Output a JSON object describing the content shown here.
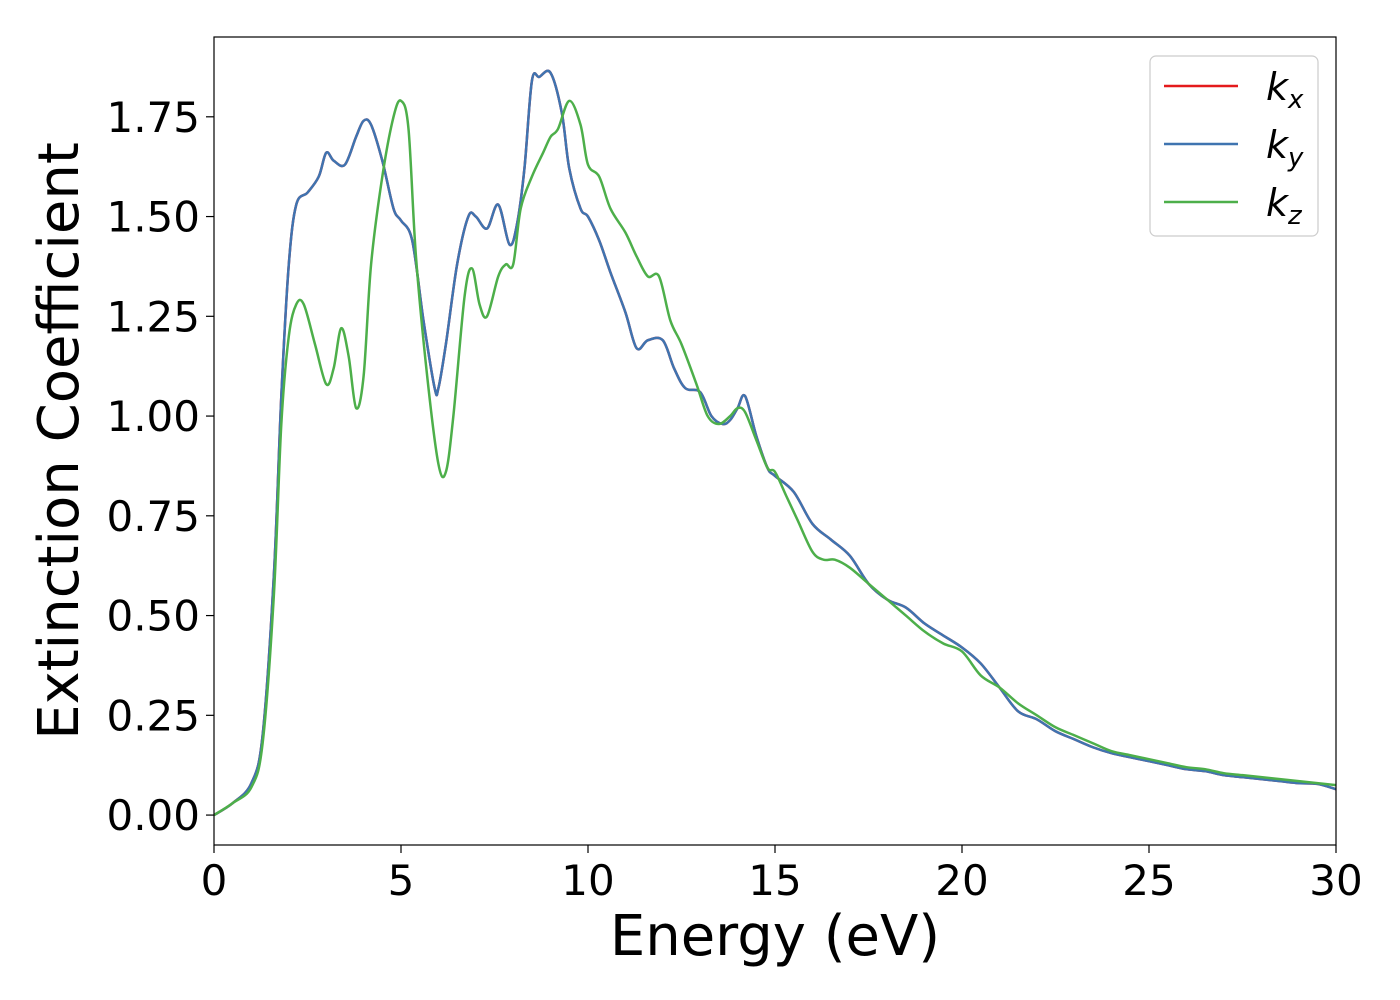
{
  "chart_data": {
    "type": "line",
    "title": "",
    "xlabel": "Energy (eV)",
    "ylabel": "Extinction Coefficient",
    "xlim": [
      0,
      30
    ],
    "ylim": [
      -0.075,
      1.95
    ],
    "xticks": [
      0,
      5,
      10,
      15,
      20,
      25,
      30
    ],
    "xtick_labels": [
      "0",
      "5",
      "10",
      "15",
      "20",
      "25",
      "30"
    ],
    "yticks": [
      0.0,
      0.25,
      0.5,
      0.75,
      1.0,
      1.25,
      1.5,
      1.75
    ],
    "ytick_labels": [
      "0.00",
      "0.25",
      "0.50",
      "0.75",
      "1.00",
      "1.25",
      "1.50",
      "1.75"
    ],
    "grid": false,
    "legend_position": "top-right",
    "series": [
      {
        "name": "k_x",
        "legend_main": "k",
        "legend_sub": "x",
        "color": "#e41a1c",
        "x": [
          0,
          0.5,
          1.0,
          1.3,
          1.6,
          1.8,
          2.0,
          2.2,
          2.5,
          2.8,
          3.0,
          3.2,
          3.5,
          3.8,
          4.0,
          4.2,
          4.5,
          4.8,
          5.0,
          5.3,
          5.6,
          5.9,
          6.0,
          6.2,
          6.5,
          6.8,
          7.0,
          7.3,
          7.6,
          7.9,
          8.1,
          8.3,
          8.5,
          8.7,
          9.0,
          9.3,
          9.5,
          9.8,
          10.0,
          10.3,
          10.6,
          11.0,
          11.3,
          11.6,
          12.0,
          12.3,
          12.6,
          13.0,
          13.3,
          13.6,
          13.8,
          14.0,
          14.2,
          14.5,
          14.8,
          15.0,
          15.5,
          16.0,
          16.5,
          17.0,
          17.5,
          18.0,
          18.5,
          19.0,
          19.5,
          20.0,
          20.5,
          21.0,
          21.5,
          22.0,
          22.5,
          23.0,
          23.5,
          24.0,
          24.5,
          25.0,
          25.5,
          26.0,
          26.5,
          27.0,
          27.5,
          28.0,
          28.5,
          29.0,
          29.5,
          30.0
        ],
        "y": [
          0.0,
          0.03,
          0.08,
          0.2,
          0.6,
          1.05,
          1.38,
          1.53,
          1.56,
          1.6,
          1.66,
          1.64,
          1.63,
          1.7,
          1.74,
          1.73,
          1.64,
          1.52,
          1.49,
          1.44,
          1.24,
          1.07,
          1.07,
          1.18,
          1.38,
          1.5,
          1.5,
          1.47,
          1.53,
          1.43,
          1.48,
          1.62,
          1.84,
          1.85,
          1.86,
          1.76,
          1.62,
          1.52,
          1.5,
          1.44,
          1.36,
          1.26,
          1.17,
          1.19,
          1.19,
          1.12,
          1.07,
          1.06,
          1.0,
          0.98,
          0.99,
          1.02,
          1.05,
          0.95,
          0.87,
          0.85,
          0.81,
          0.73,
          0.69,
          0.65,
          0.58,
          0.54,
          0.52,
          0.48,
          0.45,
          0.42,
          0.38,
          0.32,
          0.26,
          0.24,
          0.21,
          0.19,
          0.17,
          0.155,
          0.145,
          0.135,
          0.125,
          0.115,
          0.11,
          0.1,
          0.095,
          0.09,
          0.085,
          0.08,
          0.078,
          0.065
        ]
      },
      {
        "name": "k_y",
        "legend_main": "k",
        "legend_sub": "y",
        "color": "#3f74b0",
        "x": [
          0,
          0.5,
          1.0,
          1.3,
          1.6,
          1.8,
          2.0,
          2.2,
          2.5,
          2.8,
          3.0,
          3.2,
          3.5,
          3.8,
          4.0,
          4.2,
          4.5,
          4.8,
          5.0,
          5.3,
          5.6,
          5.9,
          6.0,
          6.2,
          6.5,
          6.8,
          7.0,
          7.3,
          7.6,
          7.9,
          8.1,
          8.3,
          8.5,
          8.7,
          9.0,
          9.3,
          9.5,
          9.8,
          10.0,
          10.3,
          10.6,
          11.0,
          11.3,
          11.6,
          12.0,
          12.3,
          12.6,
          13.0,
          13.3,
          13.6,
          13.8,
          14.0,
          14.2,
          14.5,
          14.8,
          15.0,
          15.5,
          16.0,
          16.5,
          17.0,
          17.5,
          18.0,
          18.5,
          19.0,
          19.5,
          20.0,
          20.5,
          21.0,
          21.5,
          22.0,
          22.5,
          23.0,
          23.5,
          24.0,
          24.5,
          25.0,
          25.5,
          26.0,
          26.5,
          27.0,
          27.5,
          28.0,
          28.5,
          29.0,
          29.5,
          30.0
        ],
        "y": [
          0.0,
          0.03,
          0.08,
          0.2,
          0.6,
          1.05,
          1.38,
          1.53,
          1.56,
          1.6,
          1.66,
          1.64,
          1.63,
          1.7,
          1.74,
          1.73,
          1.64,
          1.52,
          1.49,
          1.44,
          1.24,
          1.07,
          1.07,
          1.18,
          1.38,
          1.5,
          1.5,
          1.47,
          1.53,
          1.43,
          1.48,
          1.62,
          1.84,
          1.85,
          1.86,
          1.76,
          1.62,
          1.52,
          1.5,
          1.44,
          1.36,
          1.26,
          1.17,
          1.19,
          1.19,
          1.12,
          1.07,
          1.06,
          1.0,
          0.98,
          0.99,
          1.02,
          1.05,
          0.95,
          0.87,
          0.85,
          0.81,
          0.73,
          0.69,
          0.65,
          0.58,
          0.54,
          0.52,
          0.48,
          0.45,
          0.42,
          0.38,
          0.32,
          0.26,
          0.24,
          0.21,
          0.19,
          0.17,
          0.155,
          0.145,
          0.135,
          0.125,
          0.115,
          0.11,
          0.1,
          0.095,
          0.09,
          0.085,
          0.08,
          0.078,
          0.065
        ]
      },
      {
        "name": "k_z",
        "legend_main": "k",
        "legend_sub": "z",
        "color": "#4daf4a",
        "x": [
          0,
          0.5,
          1.0,
          1.3,
          1.6,
          1.8,
          2.0,
          2.2,
          2.4,
          2.7,
          3.0,
          3.2,
          3.4,
          3.6,
          3.8,
          4.0,
          4.2,
          4.5,
          4.8,
          5.0,
          5.2,
          5.4,
          5.7,
          6.0,
          6.2,
          6.4,
          6.7,
          6.9,
          7.1,
          7.3,
          7.6,
          7.8,
          8.0,
          8.2,
          8.5,
          8.8,
          9.0,
          9.2,
          9.5,
          9.8,
          10.0,
          10.3,
          10.6,
          11.0,
          11.3,
          11.6,
          11.9,
          12.2,
          12.5,
          12.9,
          13.2,
          13.5,
          13.8,
          14.0,
          14.2,
          14.5,
          14.8,
          15.0,
          15.3,
          15.6,
          16.0,
          16.3,
          16.6,
          17.0,
          17.5,
          18.0,
          18.5,
          19.0,
          19.5,
          20.0,
          20.5,
          21.0,
          21.5,
          22.0,
          22.5,
          23.0,
          23.5,
          24.0,
          24.5,
          25.0,
          25.5,
          26.0,
          26.5,
          27.0,
          27.5,
          28.0,
          28.5,
          29.0,
          29.5,
          30.0
        ],
        "y": [
          0.0,
          0.03,
          0.07,
          0.18,
          0.55,
          0.98,
          1.2,
          1.28,
          1.28,
          1.18,
          1.08,
          1.12,
          1.22,
          1.15,
          1.02,
          1.1,
          1.38,
          1.6,
          1.75,
          1.79,
          1.72,
          1.4,
          1.1,
          0.88,
          0.86,
          1.0,
          1.3,
          1.37,
          1.28,
          1.25,
          1.35,
          1.38,
          1.38,
          1.52,
          1.6,
          1.66,
          1.7,
          1.72,
          1.79,
          1.73,
          1.63,
          1.6,
          1.52,
          1.46,
          1.4,
          1.35,
          1.35,
          1.24,
          1.18,
          1.08,
          1.0,
          0.98,
          1.0,
          1.02,
          1.01,
          0.94,
          0.87,
          0.86,
          0.8,
          0.74,
          0.66,
          0.64,
          0.64,
          0.62,
          0.58,
          0.54,
          0.5,
          0.46,
          0.43,
          0.41,
          0.35,
          0.32,
          0.28,
          0.25,
          0.22,
          0.2,
          0.18,
          0.16,
          0.15,
          0.14,
          0.13,
          0.12,
          0.115,
          0.105,
          0.1,
          0.095,
          0.09,
          0.085,
          0.08,
          0.075
        ]
      }
    ]
  }
}
